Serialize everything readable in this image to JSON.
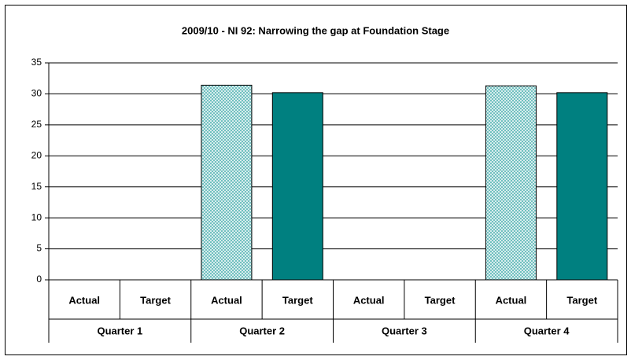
{
  "chart_data": {
    "type": "bar",
    "title": "2009/10 - NI 92: Narrowing the gap at Foundation Stage",
    "categories": [
      "Quarter 1",
      "Quarter 2",
      "Quarter 3",
      "Quarter 4"
    ],
    "series": [
      {
        "name": "Actual",
        "color": "#66bbbb",
        "pattern": "crosshatch",
        "values": [
          null,
          31.4,
          null,
          31.3
        ]
      },
      {
        "name": "Target",
        "color": "#008080",
        "values": [
          null,
          30.2,
          null,
          30.2
        ]
      }
    ],
    "ylim": [
      0,
      35
    ],
    "yticks": [
      0,
      5,
      10,
      15,
      20,
      25,
      30,
      35
    ],
    "grid": true
  }
}
